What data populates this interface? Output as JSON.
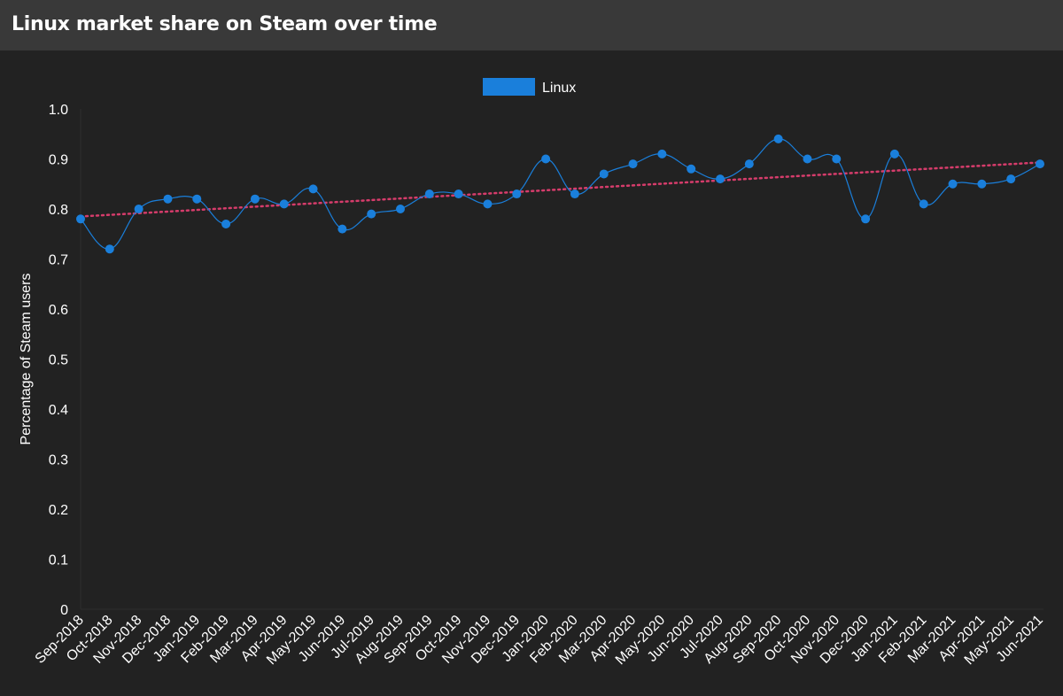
{
  "header": {
    "title": "Linux market share on Steam over time"
  },
  "chart_data": {
    "type": "line",
    "x": [
      "Sep-2018",
      "Oct-2018",
      "Nov-2018",
      "Dec-2018",
      "Jan-2019",
      "Feb-2019",
      "Mar-2019",
      "Apr-2019",
      "May-2019",
      "Jun-2019",
      "Jul-2019",
      "Aug-2019",
      "Sep-2019",
      "Oct-2019",
      "Nov-2019",
      "Dec-2019",
      "Jan-2020",
      "Feb-2020",
      "Mar-2020",
      "Apr-2020",
      "May-2020",
      "Jun-2020",
      "Jul-2020",
      "Aug-2020",
      "Sep-2020",
      "Oct-2020",
      "Nov-2020",
      "Dec-2020",
      "Jan-2021",
      "Feb-2021",
      "Mar-2021",
      "Apr-2021",
      "May-2021",
      "Jun-2021"
    ],
    "series": [
      {
        "name": "Linux",
        "color": "#1a7fdb",
        "values": [
          0.78,
          0.72,
          0.8,
          0.82,
          0.82,
          0.77,
          0.82,
          0.81,
          0.84,
          0.76,
          0.79,
          0.8,
          0.83,
          0.83,
          0.81,
          0.83,
          0.9,
          0.83,
          0.87,
          0.89,
          0.91,
          0.88,
          0.86,
          0.89,
          0.94,
          0.9,
          0.9,
          0.78,
          0.91,
          0.81,
          0.85,
          0.85,
          0.86,
          0.89
        ]
      }
    ],
    "trendline": {
      "color": "#d63c6b",
      "start": 0.785,
      "end": 0.893
    },
    "ylabel": "Percentage of Steam users",
    "xlabel": "",
    "ylim": [
      0,
      1.0
    ],
    "yticks": [
      "0",
      "0.1",
      "0.2",
      "0.3",
      "0.4",
      "0.5",
      "0.6",
      "0.7",
      "0.8",
      "0.9",
      "1.0"
    ],
    "legend_position": "top-center",
    "grid": false
  }
}
